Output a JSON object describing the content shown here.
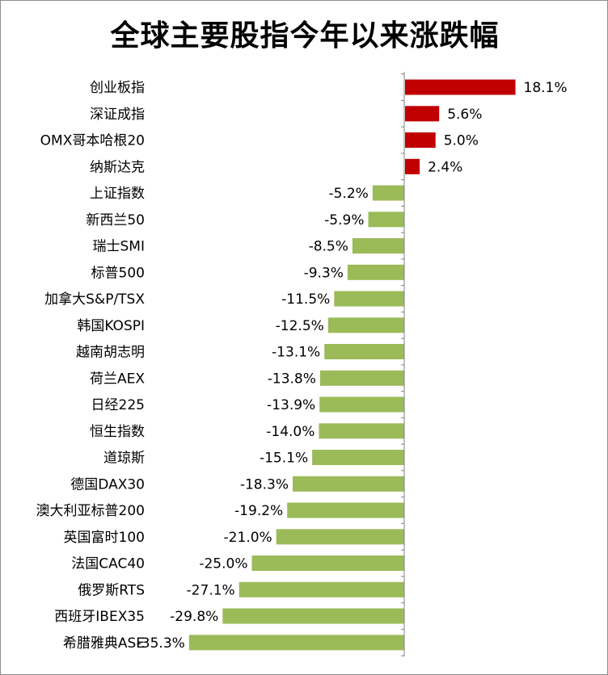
{
  "chart_data": {
    "type": "bar",
    "orientation": "horizontal",
    "title": "全球主要股指今年以来涨跌幅",
    "xlabel": "",
    "ylabel": "",
    "grid": false,
    "legend": "none",
    "xlim": [
      -40,
      20
    ],
    "categories": [
      "创业板指",
      "深证成指",
      "OMX哥本哈根20",
      "纳斯达克",
      "上证指数",
      "新西兰50",
      "瑞士SMI",
      "标普500",
      "加拿大S&P/TSX",
      "韩国KOSPI",
      "越南胡志明",
      "荷兰AEX",
      "日经225",
      "恒生指数",
      "道琼斯",
      "德国DAX30",
      "澳大利亚标普200",
      "英国富时100",
      "法国CAC40",
      "俄罗斯RTS",
      "西班牙IBEX35",
      "希腊雅典ASE"
    ],
    "values": [
      18.1,
      5.6,
      5.0,
      2.4,
      -5.2,
      -5.9,
      -8.5,
      -9.3,
      -11.5,
      -12.5,
      -13.1,
      -13.8,
      -13.9,
      -14.0,
      -15.1,
      -18.3,
      -19.2,
      -21.0,
      -25.0,
      -27.1,
      -29.8,
      -35.3
    ],
    "value_labels": [
      "18.1%",
      "5.6%",
      "5.0%",
      "2.4%",
      "-5.2%",
      "-5.9%",
      "-8.5%",
      "-9.3%",
      "-11.5%",
      "-12.5%",
      "-13.1%",
      "-13.8%",
      "-13.9%",
      "-14.0%",
      "-15.1%",
      "-18.3%",
      "-19.2%",
      "-21.0%",
      "-25.0%",
      "-27.1%",
      "-29.8%",
      "-35.3%"
    ],
    "colors": {
      "positive": "#c00000",
      "negative": "#9bbb59",
      "axis": "#808080"
    }
  }
}
